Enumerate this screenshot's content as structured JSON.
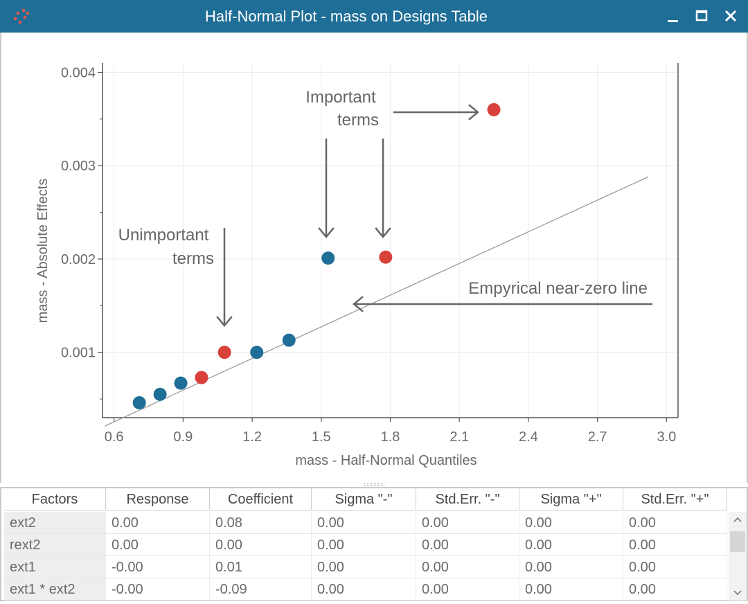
{
  "window": {
    "title": "Half-Normal Plot - mass on Designs Table",
    "minimize_icon": "minimize-icon",
    "maximize_icon": "maximize-icon",
    "close_icon": "close-icon",
    "titlebar_color": "#1f6e97"
  },
  "chart_data": {
    "type": "scatter",
    "xlabel": "mass - Half-Normal Quantiles",
    "ylabel": "mass - Absolute Effects",
    "xlim": [
      0.55,
      3.05
    ],
    "ylim": [
      0.0003,
      0.0041
    ],
    "x_ticks": [
      0.6,
      0.9,
      1.2,
      1.5,
      1.8,
      2.1,
      2.4,
      2.7,
      3.0
    ],
    "x_tick_labels": [
      "0.6",
      "0.9",
      "1.2",
      "1.5",
      "1.8",
      "2.1",
      "2.4",
      "2.7",
      "3.0"
    ],
    "y_ticks": [
      0.001,
      0.002,
      0.003,
      0.004
    ],
    "y_tick_labels": [
      "0.001",
      "0.002",
      "0.003",
      "0.004"
    ],
    "y_minor_ticks": [
      0.0005,
      0.0015,
      0.0025,
      0.0035
    ],
    "grid": true,
    "colors": {
      "negative": "#1f6e97",
      "positive": "#d9413b",
      "line": "#9a9a9a",
      "arrow": "#666666"
    },
    "points": [
      {
        "x": 0.71,
        "y": 0.00046,
        "sign": "negative"
      },
      {
        "x": 0.8,
        "y": 0.00055,
        "sign": "negative"
      },
      {
        "x": 0.89,
        "y": 0.00067,
        "sign": "negative"
      },
      {
        "x": 0.98,
        "y": 0.00073,
        "sign": "positive"
      },
      {
        "x": 1.08,
        "y": 0.001,
        "sign": "positive"
      },
      {
        "x": 1.22,
        "y": 0.001,
        "sign": "negative"
      },
      {
        "x": 1.36,
        "y": 0.00113,
        "sign": "negative"
      },
      {
        "x": 1.53,
        "y": 0.00201,
        "sign": "negative"
      },
      {
        "x": 1.78,
        "y": 0.00202,
        "sign": "positive"
      },
      {
        "x": 2.25,
        "y": 0.0036,
        "sign": "positive"
      }
    ],
    "near_zero_line": {
      "x1": 0.56,
      "y1": 0.00021,
      "x2": 2.92,
      "y2": 0.00288
    },
    "annotations": {
      "important": [
        "Important",
        "terms"
      ],
      "unimportant": [
        "Unimportant",
        "terms"
      ],
      "line_label": "Empyrical near-zero line"
    }
  },
  "table": {
    "columns": [
      "Factors",
      "Response",
      "Coefficient",
      "Sigma \"-\"",
      "Std.Err. \"-\"",
      "Sigma \"+\"",
      "Std.Err. \"+\""
    ],
    "rows": [
      [
        "ext2",
        "0.00",
        "0.08",
        "0.00",
        "0.00",
        "0.00",
        "0.00"
      ],
      [
        "rext2",
        "0.00",
        "0.00",
        "0.00",
        "0.00",
        "0.00",
        "0.00"
      ],
      [
        "ext1",
        "-0.00",
        "0.01",
        "0.00",
        "0.00",
        "0.00",
        "0.00"
      ],
      [
        "ext1 * ext2",
        "-0.00",
        "-0.09",
        "0.00",
        "0.00",
        "0.00",
        "0.00"
      ]
    ],
    "scroll_up_icon": "chevron-up-icon",
    "scroll_down_icon": "chevron-down-icon"
  }
}
